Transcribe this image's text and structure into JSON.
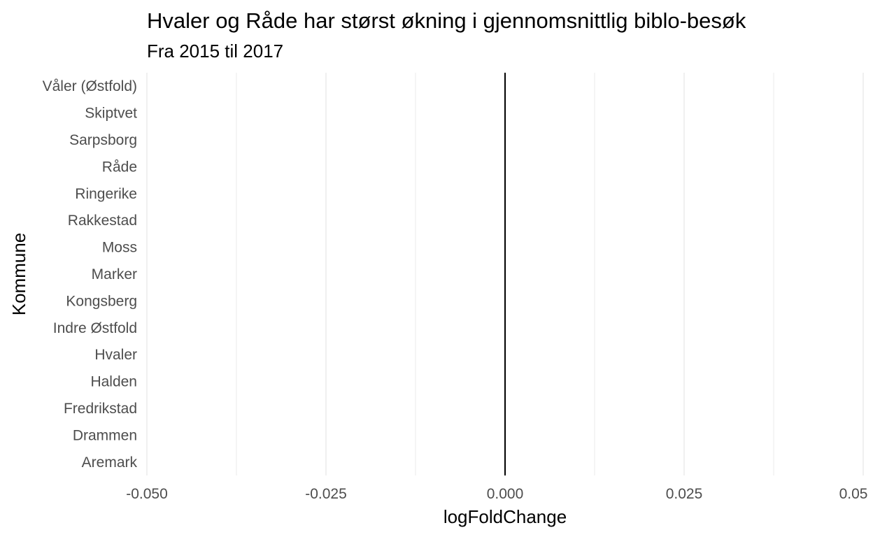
{
  "chart_data": {
    "type": "bar",
    "title": "Hvaler og Råde har størst økning i gjennomsnittlig biblo-besøk",
    "subtitle": "Fra 2015 til 2017",
    "xlabel": "logFoldChange",
    "ylabel": "Kommune",
    "orientation": "horizontal",
    "categories": [
      "Våler (Østfold)",
      "Skiptvet",
      "Sarpsborg",
      "Råde",
      "Ringerike",
      "Rakkestad",
      "Moss",
      "Marker",
      "Kongsberg",
      "Indre Østfold",
      "Hvaler",
      "Halden",
      "Fredrikstad",
      "Drammen",
      "Aremark"
    ],
    "values": [
      0,
      0,
      0,
      0,
      0,
      0,
      0,
      0,
      0,
      0,
      0,
      0,
      0,
      0,
      0
    ],
    "xlim": [
      -0.05,
      0.05
    ],
    "xticks": [
      -0.05,
      -0.025,
      0,
      0.025,
      0.05
    ],
    "xtick_labels": [
      "-0.050",
      "-0.025",
      "0.000",
      "0.025",
      "0.05"
    ],
    "grid": true,
    "reference_line": 0,
    "colors": {
      "grid": "#ebebeb",
      "reference_line": "#000000",
      "tick_text": "#4d4d4d"
    }
  }
}
